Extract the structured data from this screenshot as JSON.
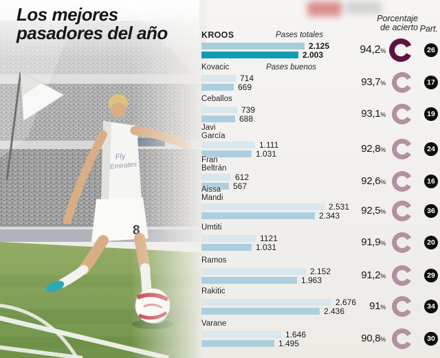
{
  "title": {
    "line1": "Los mejores",
    "line2": "pasadores del año"
  },
  "column_headers": {
    "accuracy_line1": "Porcentaje",
    "accuracy_line2": "de acierto",
    "participation": "Part."
  },
  "chart_data": {
    "type": "bar",
    "orientation": "horizontal",
    "title": "Los mejores pasadores del año",
    "series_labels": {
      "totales": "Pases totales",
      "buenos": "Pases buenos"
    },
    "percent_suffix": "%",
    "legend_position": "inline-first-row",
    "grid": false,
    "categories": [
      "Kroos",
      "Kovacic",
      "Ceballos",
      "Javi García",
      "Fran Beltrán",
      "Aissa Mandi",
      "Umtiti",
      "Ramos",
      "Rakitic",
      "Varane"
    ],
    "rows": [
      {
        "name": "Kroos",
        "name_lines": [
          "KROOS"
        ],
        "highlight": true,
        "totales": 2125,
        "totales_label": "2.125",
        "buenos": 2003,
        "buenos_label": "2.003",
        "accuracy": 94.2,
        "accuracy_label": "94,2",
        "part": "26"
      },
      {
        "name": "Kovacic",
        "name_lines": [
          "Kovacic"
        ],
        "highlight": false,
        "totales": 714,
        "totales_label": "714",
        "buenos": 669,
        "buenos_label": "669",
        "accuracy": 93.7,
        "accuracy_label": "93,7",
        "part": "17"
      },
      {
        "name": "Ceballos",
        "name_lines": [
          "Ceballos"
        ],
        "highlight": false,
        "totales": 739,
        "totales_label": "739",
        "buenos": 688,
        "buenos_label": "688",
        "accuracy": 93.1,
        "accuracy_label": "93,1",
        "part": "19"
      },
      {
        "name": "Javi García",
        "name_lines": [
          "Javi",
          "García"
        ],
        "highlight": false,
        "totales": 1111,
        "totales_label": "1.111",
        "buenos": 1031,
        "buenos_label": "1.031",
        "accuracy": 92.8,
        "accuracy_label": "92,8",
        "part": "24"
      },
      {
        "name": "Fran Beltrán",
        "name_lines": [
          "Fran",
          "Beltrán"
        ],
        "highlight": false,
        "totales": 612,
        "totales_label": "612",
        "buenos": 567,
        "buenos_label": "567",
        "accuracy": 92.6,
        "accuracy_label": "92,6",
        "part": "16"
      },
      {
        "name": "Aissa Mandi",
        "name_lines": [
          "Aissa",
          "Mandi"
        ],
        "highlight": false,
        "totales": 2531,
        "totales_label": "2.531",
        "buenos": 2343,
        "buenos_label": "2.343",
        "accuracy": 92.5,
        "accuracy_label": "92,5",
        "part": "36"
      },
      {
        "name": "Umtiti",
        "name_lines": [
          "Umtiti"
        ],
        "highlight": false,
        "totales": 1121,
        "totales_label": "1121",
        "buenos": 1031,
        "buenos_label": "1.031",
        "accuracy": 91.9,
        "accuracy_label": "91,9",
        "part": "20"
      },
      {
        "name": "Ramos",
        "name_lines": [
          "Ramos"
        ],
        "highlight": false,
        "totales": 2152,
        "totales_label": "2.152",
        "buenos": 1963,
        "buenos_label": "1.963",
        "accuracy": 91.2,
        "accuracy_label": "91,2",
        "part": "29"
      },
      {
        "name": "Rakitic",
        "name_lines": [
          "Rakitic"
        ],
        "highlight": false,
        "totales": 2676,
        "totales_label": "2.676",
        "buenos": 2436,
        "buenos_label": "2.436",
        "accuracy": 91.0,
        "accuracy_label": "91",
        "part": "34"
      },
      {
        "name": "Varane",
        "name_lines": [
          "Varane"
        ],
        "highlight": false,
        "totales": 1646,
        "totales_label": "1.646",
        "buenos": 1495,
        "buenos_label": "1.495",
        "accuracy": 90.8,
        "accuracy_label": "90,8",
        "part": "30"
      }
    ],
    "colors": {
      "bar_pases_totales": "#d9e7ee",
      "bar_pases_buenos": "#accfe0",
      "kroos_bar_pases_totales": "#a6ced9",
      "kroos_bar_pases_buenos": "#0f9cb4",
      "donut": "#b291a1",
      "donut_kroos": "#5e1340",
      "badge_bg": "#0d0d0d"
    }
  }
}
